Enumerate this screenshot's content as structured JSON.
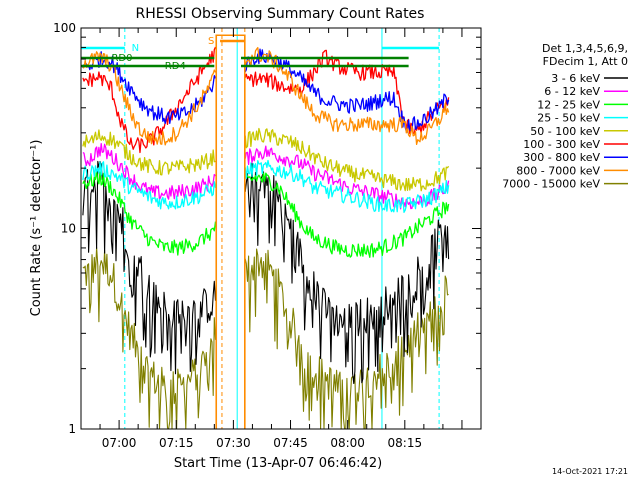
{
  "chart_data": {
    "type": "line",
    "title": "RHESSI Observing Summary Count Rates",
    "xlabel": "Start Time (13-Apr-07 06:46:42)",
    "ylabel": "Count Rate (s⁻¹ detector⁻¹)",
    "yscale": "log",
    "ylim": [
      1,
      100
    ],
    "xlim_minutes": [
      -10,
      95
    ],
    "x_tick_labels": [
      "07:00",
      "07:15",
      "07:30",
      "07:45",
      "08:00",
      "08:15"
    ],
    "x_ticks_minutes": [
      0,
      15,
      30,
      45,
      60,
      75
    ],
    "y_tick_labels": [
      "1",
      "10",
      "100"
    ],
    "y_ticks": [
      1,
      10,
      100
    ],
    "legend_header": [
      "Det 1,3,4,5,6,9,",
      "FDecim 1, Att 0"
    ],
    "legend_position": "right",
    "timestamp": "14-Oct-2021 17:21",
    "flag_labels": {
      "night": "N",
      "saa": "S",
      "rd0": "RD0",
      "rd4": "RD4"
    },
    "colors": {
      "night": "#00ffff",
      "saa": "#ff8c00",
      "decim": "#008000",
      "axis": "#000000"
    },
    "flags": {
      "night": [
        [
          -10,
          1.5
        ],
        [
          69,
          84
        ]
      ],
      "saa": [
        [
          26.5,
          33
        ]
      ],
      "rd0": [
        [
          -10,
          25
        ],
        [
          32,
          76
        ]
      ],
      "rd4": [
        [
          -10,
          25
        ],
        [
          32,
          76
        ]
      ]
    },
    "markers": {
      "dashed_cyan": [
        1.5,
        84
      ],
      "dashed_orange": [
        27,
        33
      ],
      "solid_cyan": [
        -10,
        31,
        69
      ]
    },
    "gaps": [
      [
        25.5,
        33
      ]
    ],
    "series": [
      {
        "name": "3 - 6 keV",
        "color": "#000000",
        "x": [
          -8,
          -5,
          -2,
          0,
          3,
          6,
          9,
          12,
          15,
          18,
          21,
          24,
          25,
          33,
          36,
          39,
          42,
          45,
          48,
          51,
          54,
          57,
          60,
          63,
          66,
          69,
          72,
          75,
          78,
          81,
          84,
          86
        ],
        "y": [
          16,
          18,
          15,
          12,
          8,
          6,
          4.5,
          4,
          3.8,
          3.8,
          4,
          4.2,
          4.5,
          16,
          18,
          17,
          14,
          10,
          7,
          5,
          4,
          3.5,
          3.5,
          3.6,
          3.8,
          4,
          4.5,
          5,
          6,
          7,
          9,
          11
        ]
      },
      {
        "name": "6 - 12 keV",
        "color": "#ff00ff",
        "x": [
          -8,
          -5,
          -2,
          0,
          3,
          6,
          9,
          12,
          15,
          18,
          21,
          24,
          25,
          33,
          36,
          39,
          42,
          45,
          48,
          51,
          54,
          57,
          60,
          63,
          66,
          69,
          72,
          75,
          78,
          81,
          84,
          86
        ],
        "y": [
          22,
          25,
          23,
          21,
          18,
          16,
          15,
          15,
          15,
          15.5,
          16,
          17,
          18,
          22,
          24,
          24,
          23,
          22,
          21,
          19,
          18,
          17,
          16,
          15.5,
          15,
          14.5,
          14,
          13.5,
          13.5,
          14,
          15,
          16
        ]
      },
      {
        "name": "12 - 25 keV",
        "color": "#00ff00",
        "x": [
          -8,
          -5,
          -2,
          0,
          3,
          6,
          9,
          12,
          15,
          18,
          21,
          24,
          25,
          33,
          36,
          39,
          42,
          45,
          48,
          51,
          54,
          57,
          60,
          63,
          66,
          69,
          72,
          75,
          78,
          81,
          84,
          86
        ],
        "y": [
          17,
          18,
          16,
          14,
          11,
          9.5,
          8.5,
          8,
          8,
          8.2,
          8.6,
          9.5,
          10,
          17,
          18,
          17.5,
          16,
          13,
          10.5,
          9,
          8.5,
          8,
          7.8,
          7.8,
          7.8,
          8,
          8.5,
          9,
          10,
          11,
          12,
          13
        ]
      },
      {
        "name": "25 - 50 keV",
        "color": "#00ffff",
        "x": [
          -8,
          -5,
          -2,
          0,
          3,
          6,
          9,
          12,
          15,
          18,
          21,
          24,
          25,
          33,
          36,
          39,
          42,
          45,
          48,
          51,
          54,
          57,
          60,
          63,
          66,
          69,
          72,
          75,
          78,
          81,
          84,
          86
        ],
        "y": [
          19,
          20,
          19,
          18,
          16,
          15,
          14,
          13.5,
          13.5,
          14,
          14.5,
          15.5,
          16,
          19,
          20,
          20,
          19.5,
          19,
          18,
          16,
          15.5,
          15,
          14.5,
          14,
          13.5,
          13,
          13,
          13,
          13.5,
          14,
          15,
          16
        ]
      },
      {
        "name": "50 - 100 keV",
        "color": "#c8c800",
        "x": [
          -8,
          -5,
          -2,
          0,
          3,
          6,
          9,
          12,
          15,
          18,
          21,
          24,
          25,
          33,
          36,
          39,
          42,
          45,
          48,
          51,
          54,
          57,
          60,
          63,
          66,
          69,
          72,
          75,
          78,
          81,
          84,
          86
        ],
        "y": [
          27,
          29,
          28,
          26,
          23,
          21,
          20,
          20,
          20,
          20.5,
          21,
          22,
          23,
          27,
          29,
          29,
          28,
          27,
          25,
          23,
          21,
          20,
          19,
          18.5,
          18,
          17.5,
          17,
          16.5,
          16.5,
          17,
          18,
          19
        ]
      },
      {
        "name": "100 - 300 keV",
        "color": "#ff0000",
        "x": [
          -8,
          -5,
          -2,
          0,
          3,
          6,
          9,
          12,
          15,
          18,
          21,
          24,
          25,
          33,
          36,
          39,
          42,
          45,
          48,
          51,
          54,
          57,
          60,
          63,
          66,
          69,
          72,
          75,
          78,
          81,
          84,
          86
        ],
        "y": [
          55,
          57,
          50,
          36,
          26,
          26,
          28,
          33,
          40,
          48,
          58,
          70,
          75,
          55,
          56,
          55,
          52,
          50,
          50,
          60,
          72,
          65,
          62,
          60,
          60,
          60,
          60,
          33,
          30,
          35,
          40,
          42
        ]
      },
      {
        "name": "300 - 800 keV",
        "color": "#0000ff",
        "x": [
          -8,
          -5,
          -2,
          0,
          3,
          6,
          9,
          12,
          15,
          18,
          21,
          24,
          25,
          33,
          36,
          39,
          42,
          45,
          48,
          51,
          54,
          57,
          60,
          63,
          66,
          69,
          72,
          75,
          78,
          81,
          84,
          86
        ],
        "y": [
          65,
          70,
          68,
          60,
          50,
          42,
          38,
          36,
          36,
          38,
          42,
          50,
          55,
          65,
          72,
          72,
          68,
          62,
          55,
          48,
          44,
          42,
          41,
          41,
          42,
          44,
          45,
          33,
          33,
          36,
          40,
          45
        ]
      },
      {
        "name": "800 - 7000 keV",
        "color": "#ff8c00",
        "x": [
          -8,
          -5,
          -2,
          0,
          3,
          6,
          9,
          12,
          15,
          18,
          21,
          24,
          25,
          33,
          36,
          39,
          42,
          45,
          48,
          51,
          54,
          57,
          60,
          63,
          66,
          69,
          72,
          75,
          78,
          81,
          84,
          86
        ],
        "y": [
          68,
          72,
          65,
          52,
          38,
          30,
          28,
          28,
          30,
          35,
          42,
          52,
          58,
          68,
          74,
          72,
          65,
          55,
          45,
          38,
          35,
          33,
          33,
          33,
          33,
          33,
          33,
          33,
          28,
          30,
          35,
          40
        ]
      },
      {
        "name": "7000 - 15000 keV",
        "color": "#808000",
        "x": [
          -8,
          -5,
          -2,
          0,
          3,
          6,
          9,
          12,
          15,
          18,
          21,
          24,
          25,
          33,
          36,
          39,
          42,
          45,
          48,
          51,
          54,
          57,
          60,
          63,
          66,
          69,
          72,
          75,
          78,
          81,
          84,
          86
        ],
        "y": [
          6,
          7,
          6,
          4.5,
          3,
          2.2,
          1.8,
          1.6,
          1.6,
          1.7,
          2,
          2.5,
          3,
          6,
          7,
          6.5,
          5,
          3.5,
          2.5,
          2,
          1.8,
          1.6,
          1.6,
          1.7,
          1.8,
          2,
          2.2,
          2.5,
          3,
          3.5,
          4,
          5
        ]
      }
    ]
  }
}
